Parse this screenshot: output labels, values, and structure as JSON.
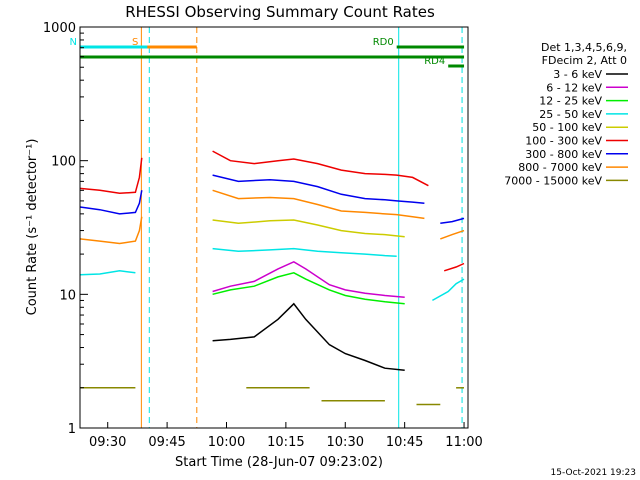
{
  "chart_data": {
    "type": "line",
    "title": "RHESSI Observing Summary Count Rates",
    "xlabel": "Start Time (28-Jun-07 09:23:02)",
    "ylabel": "Count Rate (s⁻¹ detector⁻¹)",
    "x_unit": "minutes after 09:23:02",
    "xlim": [
      0,
      98
    ],
    "ylim": [
      1,
      1000
    ],
    "y_scale": "log",
    "x_ticks": [
      {
        "x": 7,
        "label": "09:30"
      },
      {
        "x": 22,
        "label": "09:45"
      },
      {
        "x": 37,
        "label": "10:00"
      },
      {
        "x": 52,
        "label": "10:15"
      },
      {
        "x": 67,
        "label": "10:30"
      },
      {
        "x": 82,
        "label": "10:45"
      },
      {
        "x": 97,
        "label": "11:00"
      }
    ],
    "y_ticks": [
      {
        "y": 1,
        "label": "1"
      },
      {
        "y": 10,
        "label": "10"
      },
      {
        "y": 100,
        "label": "100"
      },
      {
        "y": 1000,
        "label": "1000"
      }
    ],
    "legend_header": [
      "Det 1,3,4,5,6,9,",
      "FDecim 2, Att 0"
    ],
    "legend_position": "right",
    "series": [
      {
        "name": "3 - 6 keV",
        "color": "#000000",
        "segments": [
          [
            [
              33.5,
              4.5
            ],
            [
              38,
              4.6
            ],
            [
              44,
              4.8
            ],
            [
              50,
              6.5
            ],
            [
              54,
              8.5
            ],
            [
              57,
              6.5
            ],
            [
              63,
              4.2
            ],
            [
              67,
              3.6
            ],
            [
              72,
              3.2
            ],
            [
              77,
              2.8
            ],
            [
              82,
              2.7
            ]
          ]
        ]
      },
      {
        "name": "6 - 12 keV",
        "color": "#cc00cc",
        "segments": [
          [
            [
              33.5,
              10.5
            ],
            [
              38,
              11.5
            ],
            [
              44,
              12.5
            ],
            [
              50,
              15.5
            ],
            [
              54,
              17.5
            ],
            [
              57,
              15.5
            ],
            [
              63,
              11.8
            ],
            [
              67,
              10.8
            ],
            [
              72,
              10.2
            ],
            [
              77,
              9.8
            ],
            [
              82,
              9.5
            ]
          ]
        ]
      },
      {
        "name": "12 - 25 keV",
        "color": "#00ee00",
        "segments": [
          [
            [
              33.5,
              10.0
            ],
            [
              38,
              10.8
            ],
            [
              44,
              11.5
            ],
            [
              50,
              13.5
            ],
            [
              54,
              14.5
            ],
            [
              57,
              13.0
            ],
            [
              63,
              10.8
            ],
            [
              67,
              9.8
            ],
            [
              72,
              9.2
            ],
            [
              77,
              8.8
            ],
            [
              82,
              8.5
            ]
          ]
        ]
      },
      {
        "name": "25 - 50 keV",
        "color": "#00e5e5",
        "segments": [
          [
            [
              0,
              14
            ],
            [
              5,
              14.2
            ],
            [
              10,
              15
            ],
            [
              14,
              14.5
            ]
          ],
          [
            [
              33.5,
              22
            ],
            [
              40,
              21
            ],
            [
              48,
              21.5
            ],
            [
              54,
              22
            ],
            [
              60,
              21
            ],
            [
              66,
              20.5
            ],
            [
              72,
              20
            ],
            [
              77,
              19.5
            ],
            [
              80,
              19.3
            ]
          ],
          [
            [
              89,
              9
            ],
            [
              93,
              10.5
            ],
            [
              95,
              12
            ],
            [
              97,
              13
            ]
          ]
        ]
      },
      {
        "name": "50 - 100 keV",
        "color": "#cccc00",
        "segments": [
          [
            [
              33.5,
              36
            ],
            [
              40,
              34
            ],
            [
              48,
              35.5
            ],
            [
              54,
              36
            ],
            [
              60,
              33
            ],
            [
              66,
              30
            ],
            [
              72,
              28.5
            ],
            [
              77,
              28
            ],
            [
              82,
              27
            ]
          ]
        ]
      },
      {
        "name": "100 - 300 keV",
        "color": "#ee0000",
        "segments": [
          [
            [
              0,
              62
            ],
            [
              5,
              60
            ],
            [
              10,
              57
            ],
            [
              14,
              58
            ],
            [
              15,
              75
            ],
            [
              15.6,
              105
            ]
          ],
          [
            [
              33.5,
              118
            ],
            [
              38,
              100
            ],
            [
              44,
              95
            ],
            [
              50,
              100
            ],
            [
              54,
              103
            ],
            [
              60,
              95
            ],
            [
              66,
              85
            ],
            [
              72,
              80
            ],
            [
              77,
              79
            ],
            [
              80,
              78
            ],
            [
              84,
              75
            ],
            [
              88,
              65
            ]
          ],
          [
            [
              92,
              15
            ],
            [
              95,
              16
            ],
            [
              97,
              17
            ]
          ]
        ]
      },
      {
        "name": "300 - 800 keV",
        "color": "#0000ee",
        "segments": [
          [
            [
              0,
              45
            ],
            [
              5,
              43
            ],
            [
              10,
              40
            ],
            [
              14,
              41
            ],
            [
              15,
              48
            ],
            [
              15.6,
              60
            ]
          ],
          [
            [
              33.5,
              78
            ],
            [
              40,
              70
            ],
            [
              48,
              72
            ],
            [
              54,
              70
            ],
            [
              60,
              64
            ],
            [
              66,
              56
            ],
            [
              72,
              52
            ],
            [
              77,
              51
            ],
            [
              80,
              50
            ],
            [
              84,
              49
            ],
            [
              87,
              48
            ]
          ],
          [
            [
              91,
              34
            ],
            [
              94,
              35
            ],
            [
              97,
              37
            ]
          ]
        ]
      },
      {
        "name": "800 - 7000 keV",
        "color": "#ff8800",
        "segments": [
          [
            [
              0,
              26
            ],
            [
              5,
              25
            ],
            [
              10,
              24
            ],
            [
              14,
              25
            ],
            [
              15,
              30
            ],
            [
              15.6,
              38
            ]
          ],
          [
            [
              33.5,
              60
            ],
            [
              40,
              52
            ],
            [
              48,
              53
            ],
            [
              54,
              52
            ],
            [
              60,
              47
            ],
            [
              66,
              42
            ],
            [
              72,
              41
            ],
            [
              77,
              40
            ],
            [
              80,
              39.5
            ],
            [
              84,
              38
            ],
            [
              87,
              37
            ]
          ],
          [
            [
              91,
              26
            ],
            [
              94,
              28
            ],
            [
              97,
              30
            ]
          ]
        ]
      },
      {
        "name": "7000 - 15000 keV",
        "color": "#888800",
        "segments": [
          [
            [
              0,
              2.0
            ],
            [
              14,
              2.0
            ]
          ],
          [
            [
              42,
              2.0
            ],
            [
              58,
              2.0
            ]
          ],
          [
            [
              61,
              1.6
            ],
            [
              77,
              1.6
            ]
          ],
          [
            [
              85,
              1.5
            ],
            [
              91,
              1.5
            ]
          ],
          [
            [
              95,
              2.0
            ],
            [
              97,
              2.0
            ]
          ]
        ]
      }
    ],
    "top_bars": [
      {
        "label": "S",
        "color": "#ff8800",
        "x0": 15.5,
        "x1": 29.5,
        "level": "upper"
      },
      {
        "label": "N",
        "color": "#00e5e5",
        "x0": 0,
        "x1": 17,
        "level": "upper"
      },
      {
        "label": "",
        "color": "#00e5e5",
        "x0": 80,
        "x1": 97,
        "level": "upper"
      },
      {
        "label": "",
        "color": "#008800",
        "x0": 0,
        "x1": 97,
        "level": "middle"
      },
      {
        "label": "RD0",
        "color": "#008800",
        "x0": 80,
        "x1": 97,
        "level": "upper"
      },
      {
        "label": "RD4",
        "color": "#008800",
        "x0": 93,
        "x1": 97,
        "level": "lower"
      }
    ],
    "vertical_markers": [
      {
        "x": 15.5,
        "color": "#ff8800",
        "style": "solid"
      },
      {
        "x": 17.5,
        "color": "#00e5e5",
        "style": "dashed"
      },
      {
        "x": 29.5,
        "color": "#ff8800",
        "style": "dashed"
      },
      {
        "x": 80.5,
        "color": "#00e5e5",
        "style": "solid"
      },
      {
        "x": 96.5,
        "color": "#00e5e5",
        "style": "dashed"
      },
      {
        "x": 0,
        "color": "#00e5e5",
        "style": "solid"
      }
    ]
  },
  "footer": {
    "timestamp": "15-Oct-2021 19:23"
  }
}
